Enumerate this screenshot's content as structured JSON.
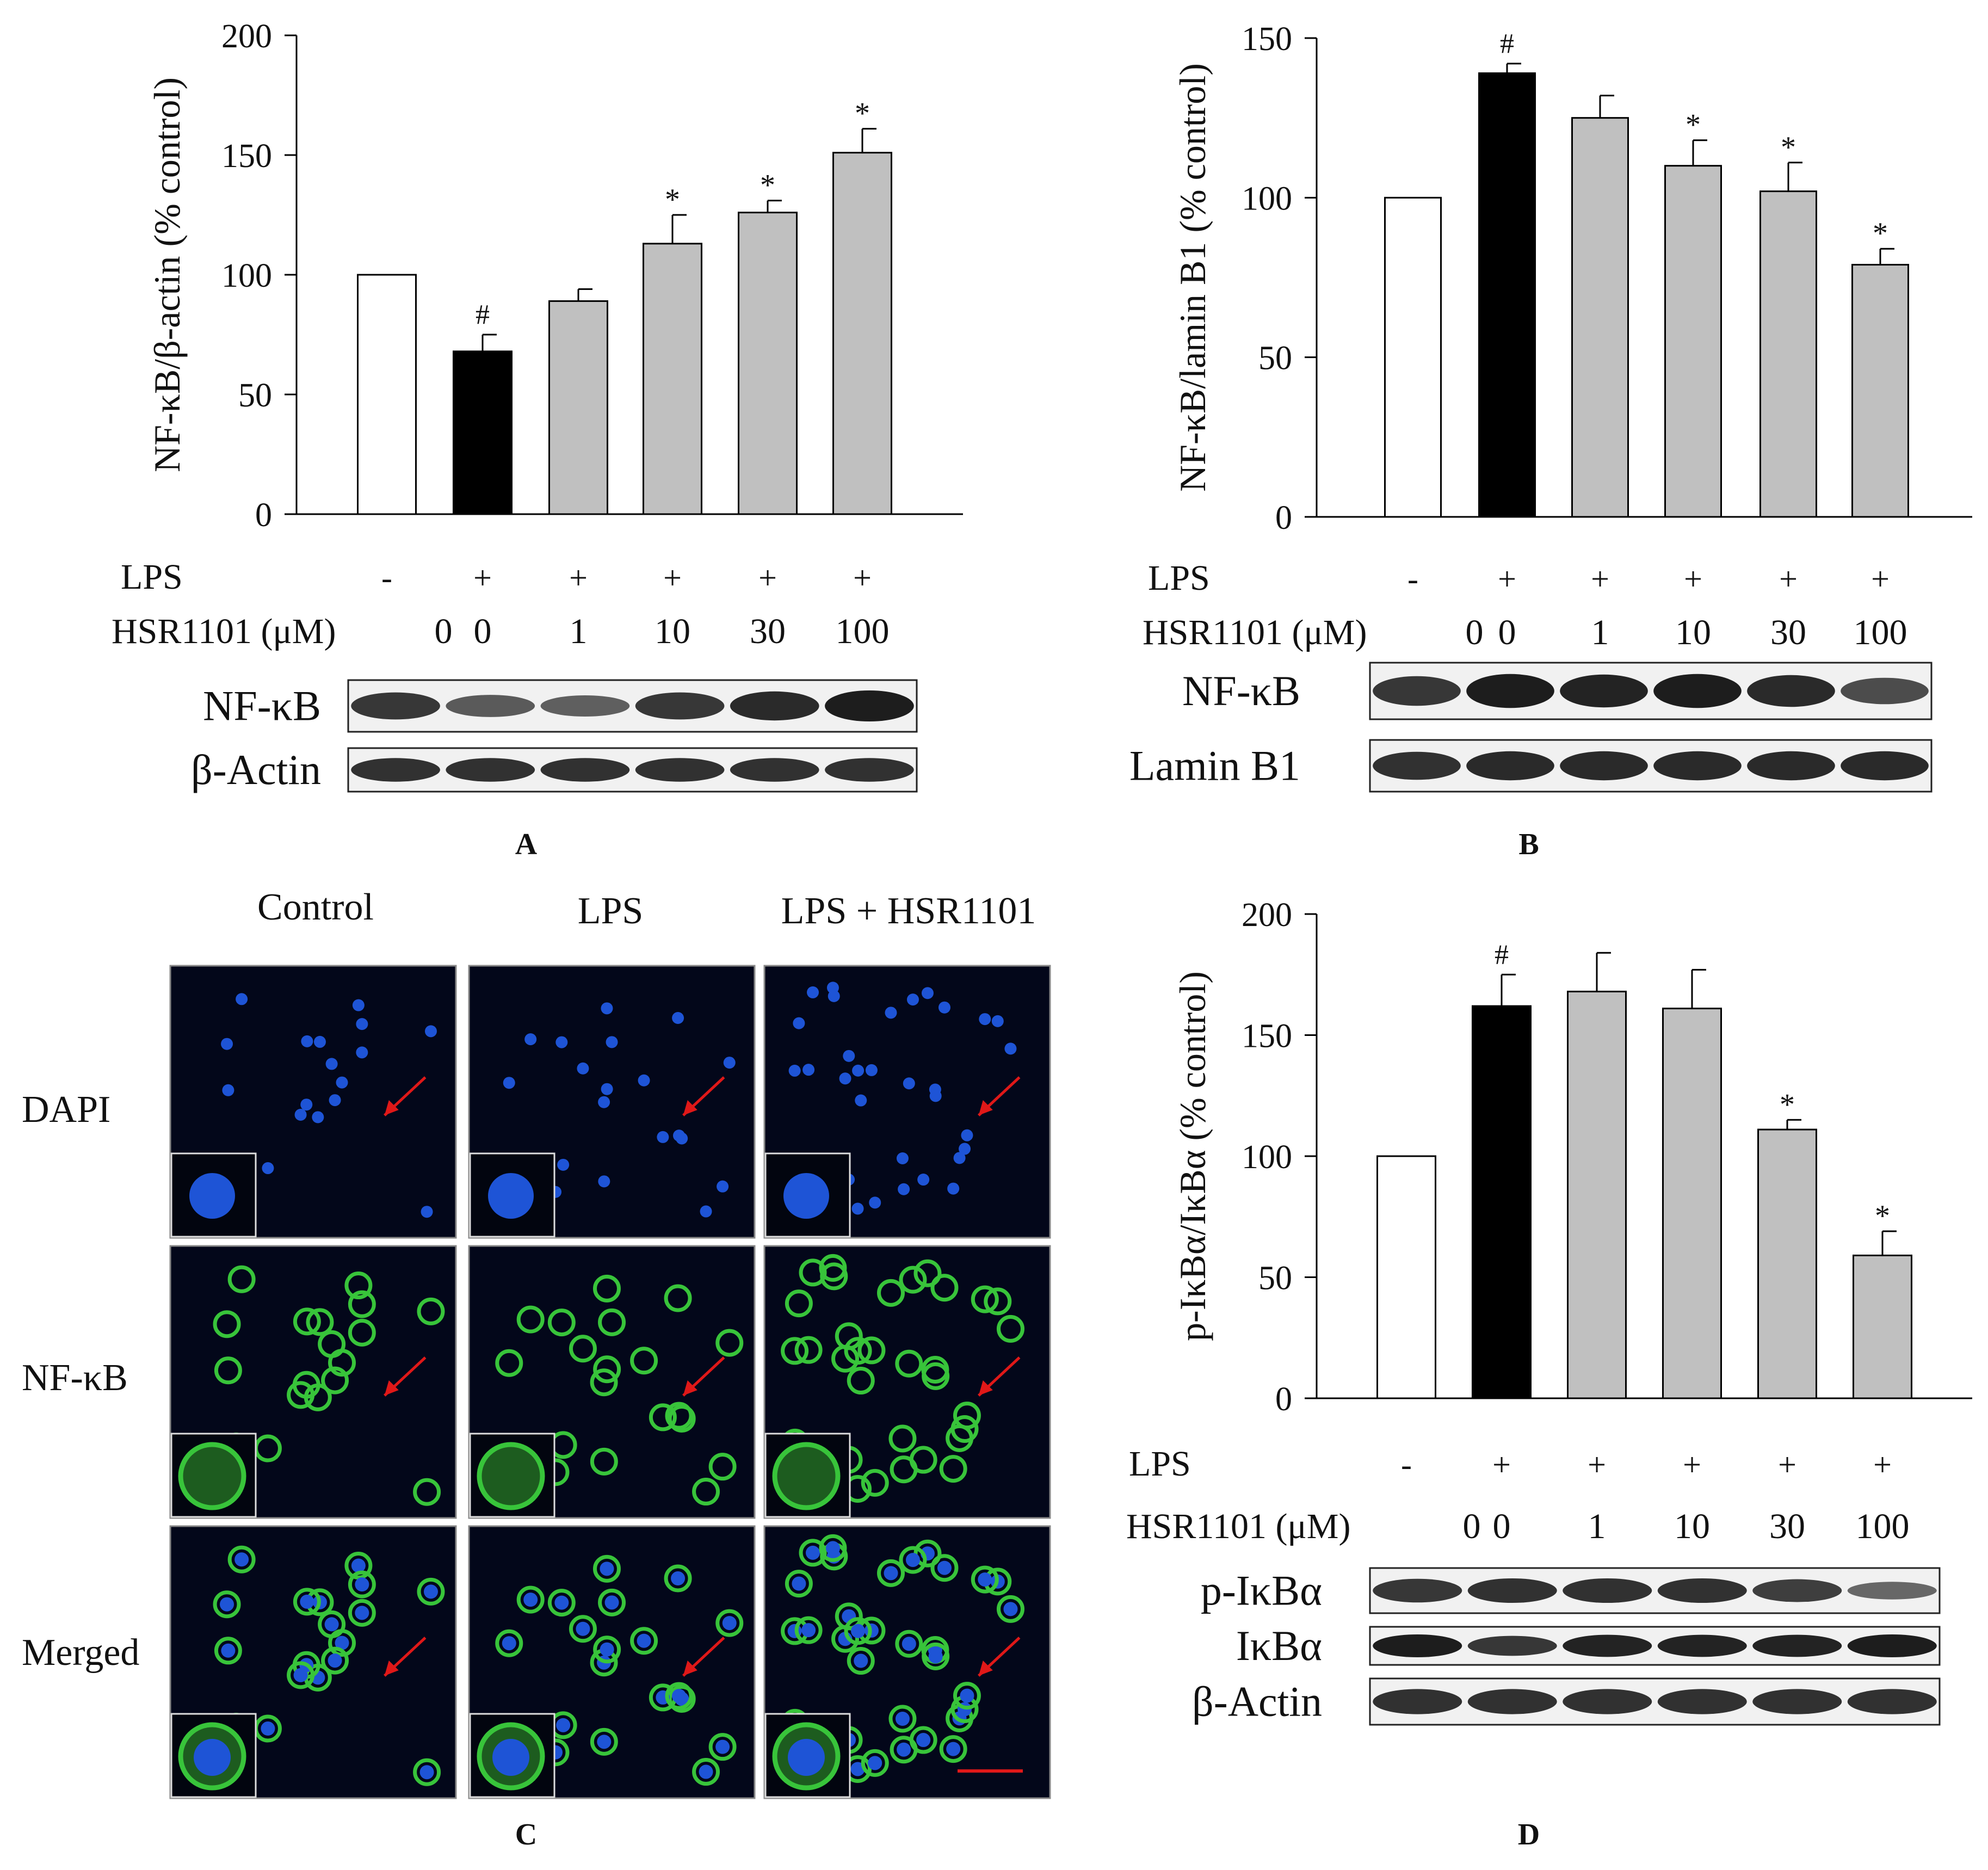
{
  "panels": {
    "A": {
      "label": "A"
    },
    "B": {
      "label": "B"
    },
    "C": {
      "label": "C"
    },
    "D": {
      "label": "D"
    }
  },
  "conditions": {
    "lps_label": "LPS",
    "lps": [
      "-",
      "+",
      "+",
      "+",
      "+",
      "+"
    ],
    "dose_label": "HSR1101 (μM)",
    "doses": [
      "0",
      "0",
      "1",
      "10",
      "30",
      "100"
    ]
  },
  "colors": {
    "control": "#ffffff",
    "lps": "#000000",
    "treated": "#c0c0c0",
    "nucleus_blue": "#1e54d6",
    "nfkb_green": "#38c43a",
    "arrow_red": "#e01818"
  },
  "chart_data": [
    {
      "panel": "A",
      "type": "bar",
      "ylabel": "NF-κB/β-actin (% control)",
      "ylim": [
        0,
        200
      ],
      "yticks": [
        0,
        50,
        100,
        150,
        200
      ],
      "categories": [
        "0",
        "0",
        "1",
        "10",
        "30",
        "100"
      ],
      "values": [
        100,
        68,
        89,
        113,
        126,
        151
      ],
      "errors": [
        0,
        7,
        5,
        12,
        5,
        10
      ],
      "annotations": [
        "",
        "#",
        "",
        "*",
        "*",
        "*"
      ],
      "bar_colors": [
        "control",
        "lps",
        "treated",
        "treated",
        "treated",
        "treated"
      ],
      "blots": [
        {
          "name": "NF-κB",
          "intensity": [
            0.8,
            0.55,
            0.5,
            0.8,
            0.9,
            1.0
          ]
        },
        {
          "name": "β-Actin",
          "intensity": [
            0.85,
            0.85,
            0.85,
            0.85,
            0.85,
            0.85
          ]
        }
      ]
    },
    {
      "panel": "B",
      "type": "bar",
      "ylabel": "NF-κB/lamin B1 (% control)",
      "ylim": [
        0,
        150
      ],
      "yticks": [
        0,
        50,
        100,
        150
      ],
      "categories": [
        "0",
        "0",
        "1",
        "10",
        "30",
        "100"
      ],
      "values": [
        100,
        139,
        125,
        110,
        102,
        79
      ],
      "errors": [
        0,
        3,
        7,
        8,
        9,
        5
      ],
      "annotations": [
        "",
        "#",
        "",
        "*",
        "*",
        "*"
      ],
      "bar_colors": [
        "control",
        "lps",
        "treated",
        "treated",
        "treated",
        "treated"
      ],
      "blots": [
        {
          "name": "NF-κB",
          "intensity": [
            0.8,
            1.0,
            0.95,
            1.0,
            0.9,
            0.65
          ]
        },
        {
          "name": "Lamin B1",
          "intensity": [
            0.85,
            0.9,
            0.9,
            0.9,
            0.9,
            0.9
          ]
        }
      ]
    },
    {
      "panel": "D",
      "type": "bar",
      "ylabel": "p-IκBα/IκBα (% control)",
      "ylim": [
        0,
        200
      ],
      "yticks": [
        0,
        50,
        100,
        150,
        200
      ],
      "categories": [
        "0",
        "0",
        "1",
        "10",
        "30",
        "100"
      ],
      "values": [
        100,
        162,
        168,
        161,
        111,
        59
      ],
      "errors": [
        0,
        13,
        16,
        16,
        4,
        10
      ],
      "annotations": [
        "",
        "#",
        "",
        "",
        "*",
        "*"
      ],
      "bar_colors": [
        "control",
        "lps",
        "treated",
        "treated",
        "treated",
        "treated"
      ],
      "blots": [
        {
          "name": "p-IκBα",
          "intensity": [
            0.8,
            0.85,
            0.85,
            0.85,
            0.75,
            0.45
          ]
        },
        {
          "name": "IκBα",
          "intensity": [
            1.0,
            0.8,
            0.95,
            0.95,
            0.95,
            1.0
          ]
        },
        {
          "name": "β-Actin",
          "intensity": [
            0.85,
            0.85,
            0.85,
            0.85,
            0.85,
            0.85
          ]
        }
      ]
    }
  ],
  "microscopy": {
    "columns": [
      "Control",
      "LPS",
      "LPS + HSR1101"
    ],
    "rows": [
      "DAPI",
      "NF-κB",
      "Merged"
    ]
  }
}
